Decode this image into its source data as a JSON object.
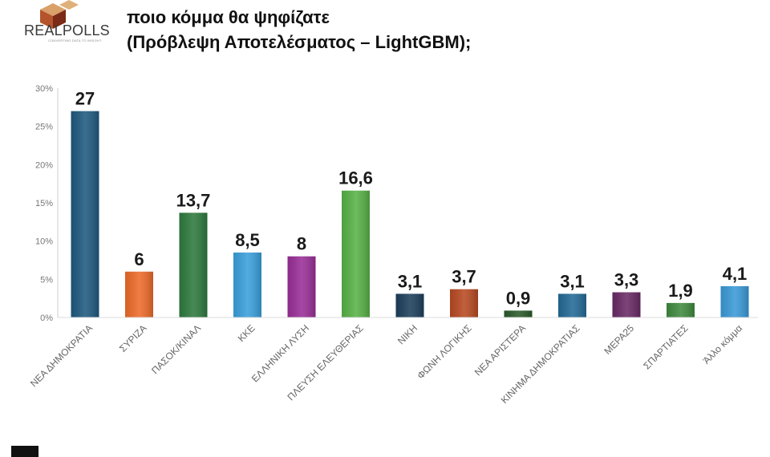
{
  "header": {
    "logo_text": "REALPOLLS",
    "logo_tagline": "CONVERTING DATA TO INSIGHT",
    "title_lines": [
      "ποιο κόμμα θα ψηφίζατε",
      "(Πρόβλεψη Αποτελέσματος – LightGBM);"
    ]
  },
  "chart_data": {
    "type": "bar",
    "categories": [
      "ΝΕΑ ΔΗΜΟΚΡΑΤΙΑ",
      "ΣΥΡΙΖΑ",
      "ΠΑΣΟΚ/ΚΙΝΑΛ",
      "ΚΚΕ",
      "ΕΛΛΗΝΙΚΗ ΛΥΣΗ",
      "ΠΛΕΥΣΗ ΕΛΕΥΘΕΡΙΑΣ",
      "ΝΙΚΗ",
      "ΦΩΝΗ ΛΟΓΙΚΗΣ",
      "ΝΕΑ ΑΡΙΣΤΕΡΑ",
      "ΚΙΝΗΜΑ ΔΗΜΟΚΡΑΤΙΑΣ",
      "ΜΕΡΑ25",
      "ΣΠΑΡΤΙΑΤΕΣ",
      "Άλλο κόμμα"
    ],
    "values": [
      27,
      6,
      13.7,
      8.5,
      8,
      16.6,
      3.1,
      3.7,
      0.9,
      3.1,
      3.3,
      1.9,
      4.1
    ],
    "value_labels": [
      "27",
      "6",
      "13,7",
      "8,5",
      "8",
      "16,6",
      "3,1",
      "3,7",
      "0,9",
      "3,1",
      "3,3",
      "1,9",
      "4,1"
    ],
    "colors": [
      "#1f5a80",
      "#ee6b2a",
      "#2e7a3e",
      "#3aa0dc",
      "#9a2f98",
      "#58b247",
      "#1d3f5c",
      "#b84a22",
      "#2a5a2a",
      "#246a96",
      "#6a2a66",
      "#3f8a3f",
      "#3a9ad8"
    ],
    "yticks": [
      "0%",
      "5%",
      "10%",
      "15%",
      "20%",
      "25%",
      "30%"
    ],
    "ylim": [
      0,
      30
    ],
    "grid": false,
    "legend": "none"
  }
}
